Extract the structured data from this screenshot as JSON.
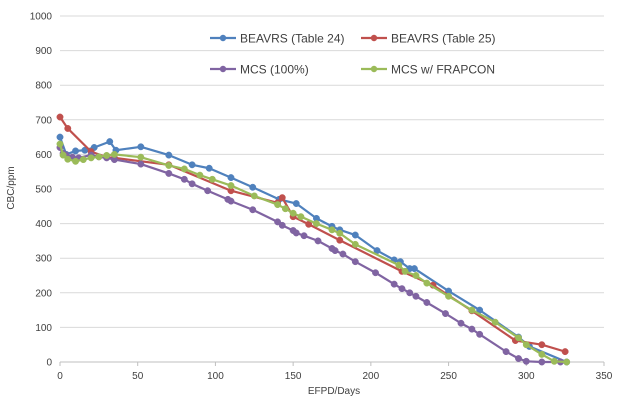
{
  "chart_data": {
    "type": "line",
    "xlabel": "EFPD/Days",
    "ylabel": "CBC/ppm",
    "xlim": [
      0,
      350
    ],
    "ylim": [
      0,
      1000
    ],
    "x_ticks": [
      0,
      50,
      100,
      150,
      200,
      250,
      300,
      350
    ],
    "y_ticks": [
      0,
      100,
      200,
      300,
      400,
      500,
      600,
      700,
      800,
      900,
      1000
    ],
    "x_tick_labels": [
      "0",
      "50",
      "100",
      "150",
      "200",
      "250",
      "300",
      "350"
    ],
    "y_tick_labels": [
      "0",
      "100",
      "200",
      "300",
      "400",
      "500",
      "600",
      "700",
      "800",
      "900",
      "1000"
    ],
    "grid": "horizontal",
    "legend_position": "top-right",
    "series": [
      {
        "name": "BEAVRS (Table 24)",
        "color": "#4f81bd",
        "points": [
          [
            0,
            650
          ],
          [
            4,
            600
          ],
          [
            10,
            610
          ],
          [
            16,
            612
          ],
          [
            22,
            620
          ],
          [
            32,
            637
          ],
          [
            36,
            612
          ],
          [
            52,
            622
          ],
          [
            70,
            598
          ],
          [
            85,
            570
          ],
          [
            96,
            560
          ],
          [
            110,
            533
          ],
          [
            124,
            505
          ],
          [
            141,
            470
          ],
          [
            152,
            458
          ],
          [
            165,
            415
          ],
          [
            175,
            392
          ],
          [
            180,
            382
          ],
          [
            190,
            367
          ],
          [
            204,
            322
          ],
          [
            215,
            295
          ],
          [
            219,
            290
          ],
          [
            225,
            270
          ],
          [
            228,
            270
          ],
          [
            250,
            205
          ],
          [
            270,
            150
          ],
          [
            295,
            72
          ],
          [
            302,
            45
          ],
          [
            326,
            0
          ]
        ]
      },
      {
        "name": "BEAVRS (Table 25)",
        "color": "#c0504d",
        "points": [
          [
            0,
            708
          ],
          [
            5,
            675
          ],
          [
            20,
            608
          ],
          [
            30,
            592
          ],
          [
            35,
            590
          ],
          [
            70,
            570
          ],
          [
            110,
            495
          ],
          [
            140,
            460
          ],
          [
            143,
            475
          ],
          [
            150,
            420
          ],
          [
            160,
            398
          ],
          [
            180,
            352
          ],
          [
            220,
            262
          ],
          [
            240,
            222
          ],
          [
            265,
            148
          ],
          [
            293,
            62
          ],
          [
            310,
            50
          ],
          [
            325,
            30
          ]
        ]
      },
      {
        "name": "MCS (100%)",
        "color": "#8064a2",
        "points": [
          [
            0,
            620
          ],
          [
            2,
            603
          ],
          [
            4,
            598
          ],
          [
            8,
            592
          ],
          [
            12,
            590
          ],
          [
            20,
            598
          ],
          [
            25,
            593
          ],
          [
            30,
            590
          ],
          [
            35,
            585
          ],
          [
            52,
            572
          ],
          [
            70,
            545
          ],
          [
            80,
            528
          ],
          [
            85,
            515
          ],
          [
            95,
            495
          ],
          [
            108,
            470
          ],
          [
            110,
            465
          ],
          [
            124,
            440
          ],
          [
            140,
            405
          ],
          [
            143,
            395
          ],
          [
            150,
            380
          ],
          [
            152,
            373
          ],
          [
            157,
            365
          ],
          [
            166,
            350
          ],
          [
            175,
            328
          ],
          [
            177,
            322
          ],
          [
            182,
            312
          ],
          [
            190,
            290
          ],
          [
            203,
            258
          ],
          [
            215,
            225
          ],
          [
            220,
            212
          ],
          [
            225,
            200
          ],
          [
            229,
            190
          ],
          [
            236,
            172
          ],
          [
            248,
            140
          ],
          [
            258,
            112
          ],
          [
            265,
            95
          ],
          [
            270,
            80
          ],
          [
            287,
            30
          ],
          [
            295,
            10
          ],
          [
            300,
            2
          ],
          [
            310,
            0
          ],
          [
            322,
            0
          ]
        ]
      },
      {
        "name": "MCS w/ FRAPCON",
        "color": "#9bbb59",
        "points": [
          [
            0,
            630
          ],
          [
            2,
            598
          ],
          [
            5,
            586
          ],
          [
            10,
            580
          ],
          [
            15,
            585
          ],
          [
            20,
            590
          ],
          [
            25,
            593
          ],
          [
            30,
            597
          ],
          [
            35,
            600
          ],
          [
            52,
            592
          ],
          [
            70,
            568
          ],
          [
            80,
            558
          ],
          [
            90,
            540
          ],
          [
            98,
            528
          ],
          [
            110,
            510
          ],
          [
            125,
            480
          ],
          [
            140,
            455
          ],
          [
            145,
            443
          ],
          [
            150,
            430
          ],
          [
            155,
            420
          ],
          [
            165,
            400
          ],
          [
            175,
            382
          ],
          [
            180,
            372
          ],
          [
            190,
            340
          ],
          [
            218,
            280
          ],
          [
            222,
            262
          ],
          [
            229,
            250
          ],
          [
            236,
            228
          ],
          [
            250,
            190
          ],
          [
            265,
            150
          ],
          [
            280,
            115
          ],
          [
            295,
            70
          ],
          [
            300,
            50
          ],
          [
            310,
            22
          ],
          [
            318,
            2
          ],
          [
            326,
            0
          ]
        ]
      }
    ]
  }
}
